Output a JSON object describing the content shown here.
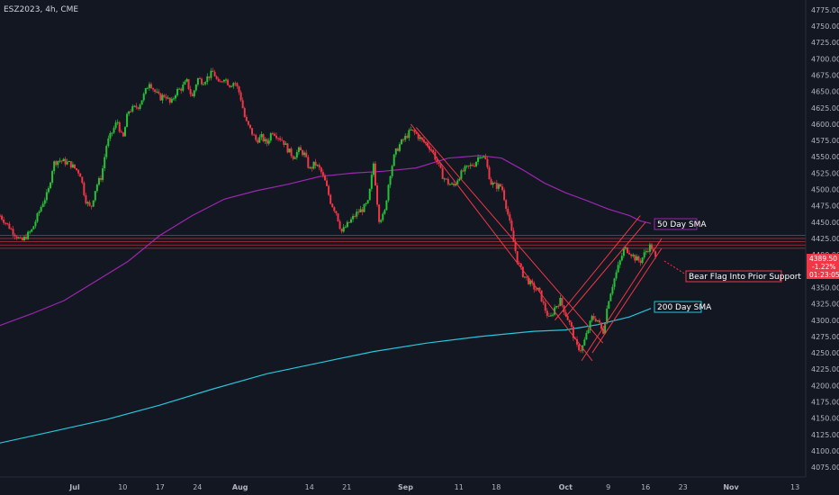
{
  "chart_data": {
    "type": "candlestick",
    "symbol_label": "ESZ2023, 4h, CME",
    "y_ticks": [
      4075,
      4100,
      4125,
      4150,
      4175,
      4200,
      4225,
      4250,
      4275,
      4300,
      4325,
      4350,
      4375,
      4400,
      4425,
      4450,
      4475,
      4500,
      4525,
      4550,
      4575,
      4600,
      4625,
      4650,
      4675,
      4700,
      4725,
      4750,
      4775
    ],
    "ylim": [
      4060,
      4790
    ],
    "x_tick_labels": [
      "Jul",
      "10",
      "17",
      "24",
      "Aug",
      "14",
      "21",
      "Sep",
      "11",
      "18",
      "Oct",
      "9",
      "16",
      "23",
      "Nov",
      "13"
    ],
    "x_tick_days": [
      0,
      9,
      16,
      23,
      31,
      44,
      51,
      62,
      72,
      79,
      92,
      100,
      107,
      114,
      123,
      135
    ],
    "x_ticks_bold": [
      "Jul",
      "Aug",
      "Sep",
      "Oct",
      "Nov"
    ],
    "xlim_days": [
      -14,
      137
    ],
    "price_path": [
      [
        -14,
        4460
      ],
      [
        -12,
        4440
      ],
      [
        -10,
        4420
      ],
      [
        -8,
        4438
      ],
      [
        -6,
        4480
      ],
      [
        -5,
        4495
      ],
      [
        -4,
        4540
      ],
      [
        -3,
        4545
      ],
      [
        -1,
        4540
      ],
      [
        1,
        4525
      ],
      [
        2,
        4485
      ],
      [
        3,
        4470
      ],
      [
        4,
        4505
      ],
      [
        5,
        4520
      ],
      [
        6,
        4570
      ],
      [
        8,
        4605
      ],
      [
        9,
        4575
      ],
      [
        10,
        4620
      ],
      [
        12,
        4628
      ],
      [
        13,
        4645
      ],
      [
        14,
        4665
      ],
      [
        15,
        4650
      ],
      [
        16,
        4640
      ],
      [
        17,
        4645
      ],
      [
        18,
        4630
      ],
      [
        19,
        4650
      ],
      [
        20,
        4655
      ],
      [
        21,
        4665
      ],
      [
        22,
        4640
      ],
      [
        23,
        4670
      ],
      [
        24,
        4665
      ],
      [
        26,
        4680
      ],
      [
        27,
        4660
      ],
      [
        28,
        4672
      ],
      [
        29,
        4660
      ],
      [
        30,
        4665
      ],
      [
        31,
        4645
      ],
      [
        32,
        4605
      ],
      [
        33,
        4590
      ],
      [
        34,
        4575
      ],
      [
        35,
        4580
      ],
      [
        36,
        4570
      ],
      [
        37,
        4590
      ],
      [
        38,
        4582
      ],
      [
        39,
        4575
      ],
      [
        40,
        4560
      ],
      [
        41,
        4550
      ],
      [
        42,
        4560
      ],
      [
        43,
        4555
      ],
      [
        44,
        4530
      ],
      [
        45,
        4540
      ],
      [
        46,
        4530
      ],
      [
        47,
        4510
      ],
      [
        48,
        4480
      ],
      [
        49,
        4465
      ],
      [
        50,
        4435
      ],
      [
        51,
        4445
      ],
      [
        52,
        4455
      ],
      [
        53,
        4465
      ],
      [
        54,
        4470
      ],
      [
        55,
        4480
      ],
      [
        56,
        4540
      ],
      [
        57,
        4455
      ],
      [
        58,
        4460
      ],
      [
        59,
        4520
      ],
      [
        60,
        4555
      ],
      [
        61,
        4570
      ],
      [
        62,
        4580
      ],
      [
        63,
        4590
      ],
      [
        64,
        4585
      ],
      [
        65,
        4575
      ],
      [
        66,
        4570
      ],
      [
        67,
        4560
      ],
      [
        68,
        4540
      ],
      [
        69,
        4520
      ],
      [
        70,
        4510
      ],
      [
        71,
        4505
      ],
      [
        72,
        4520
      ],
      [
        73,
        4530
      ],
      [
        74,
        4535
      ],
      [
        75,
        4540
      ],
      [
        76,
        4555
      ],
      [
        77,
        4545
      ],
      [
        78,
        4510
      ],
      [
        79,
        4505
      ],
      [
        80,
        4505
      ],
      [
        81,
        4470
      ],
      [
        82,
        4430
      ],
      [
        83,
        4390
      ],
      [
        84,
        4370
      ],
      [
        85,
        4360
      ],
      [
        86,
        4350
      ],
      [
        87,
        4345
      ],
      [
        88,
        4320
      ],
      [
        89,
        4300
      ],
      [
        90,
        4320
      ],
      [
        91,
        4330
      ],
      [
        92,
        4310
      ],
      [
        93,
        4290
      ],
      [
        94,
        4260
      ],
      [
        95,
        4255
      ],
      [
        96,
        4280
      ],
      [
        97,
        4305
      ],
      [
        98,
        4300
      ],
      [
        99,
        4280
      ],
      [
        100,
        4330
      ],
      [
        101,
        4360
      ],
      [
        102,
        4385
      ],
      [
        103,
        4410
      ],
      [
        104,
        4405
      ],
      [
        105,
        4395
      ],
      [
        106,
        4390
      ],
      [
        107,
        4405
      ],
      [
        108,
        4415
      ],
      [
        109,
        4390
      ]
    ],
    "ma50_path": [
      [
        -14,
        4292
      ],
      [
        -8,
        4310
      ],
      [
        -2,
        4330
      ],
      [
        4,
        4360
      ],
      [
        10,
        4390
      ],
      [
        16,
        4430
      ],
      [
        22,
        4460
      ],
      [
        28,
        4485
      ],
      [
        34,
        4498
      ],
      [
        40,
        4508
      ],
      [
        46,
        4520
      ],
      [
        52,
        4525
      ],
      [
        58,
        4528
      ],
      [
        64,
        4533
      ],
      [
        70,
        4548
      ],
      [
        76,
        4552
      ],
      [
        80,
        4548
      ],
      [
        84,
        4530
      ],
      [
        88,
        4510
      ],
      [
        92,
        4495
      ],
      [
        96,
        4483
      ],
      [
        100,
        4470
      ],
      [
        104,
        4460
      ],
      [
        106,
        4452
      ],
      [
        108,
        4448
      ]
    ],
    "ma200_path": [
      [
        -14,
        4112
      ],
      [
        -4,
        4130
      ],
      [
        6,
        4148
      ],
      [
        16,
        4170
      ],
      [
        26,
        4195
      ],
      [
        36,
        4218
      ],
      [
        46,
        4235
      ],
      [
        56,
        4252
      ],
      [
        66,
        4265
      ],
      [
        76,
        4275
      ],
      [
        86,
        4283
      ],
      [
        92,
        4285
      ],
      [
        98,
        4293
      ],
      [
        104,
        4305
      ],
      [
        108,
        4318
      ]
    ],
    "support_levels": [
      4430,
      4425,
      4420,
      4415,
      4410
    ],
    "down_channel": {
      "start": [
        63,
        4600
      ],
      "end": [
        97,
        4238
      ],
      "upper_start": [
        64,
        4595
      ],
      "upper_end": [
        99,
        4265
      ]
    },
    "up_channel": [
      {
        "start": [
          95,
          4238
        ],
        "end": [
          110,
          4425
        ]
      },
      {
        "start": [
          97,
          4250
        ],
        "end": [
          110,
          4410
        ]
      },
      {
        "start": [
          90,
          4300
        ],
        "end": [
          106,
          4460
        ]
      },
      {
        "start": [
          92,
          4305
        ],
        "end": [
          107,
          4450
        ]
      }
    ],
    "annotations": {
      "ma50": "50 Day SMA",
      "ma200": "200 Day SMA",
      "bear_flag": "Bear Flag Into Prior Support"
    },
    "last_price": {
      "value": "4389.50",
      "change": "-1.22%",
      "countdown": "01:23:05"
    },
    "colors": {
      "background": "#131722",
      "up": "#26c236",
      "down": "#f23645",
      "ma50": "#9c27b0",
      "ma200": "#26c6da",
      "support": "#f23645",
      "tick": "#b2b5be"
    }
  }
}
